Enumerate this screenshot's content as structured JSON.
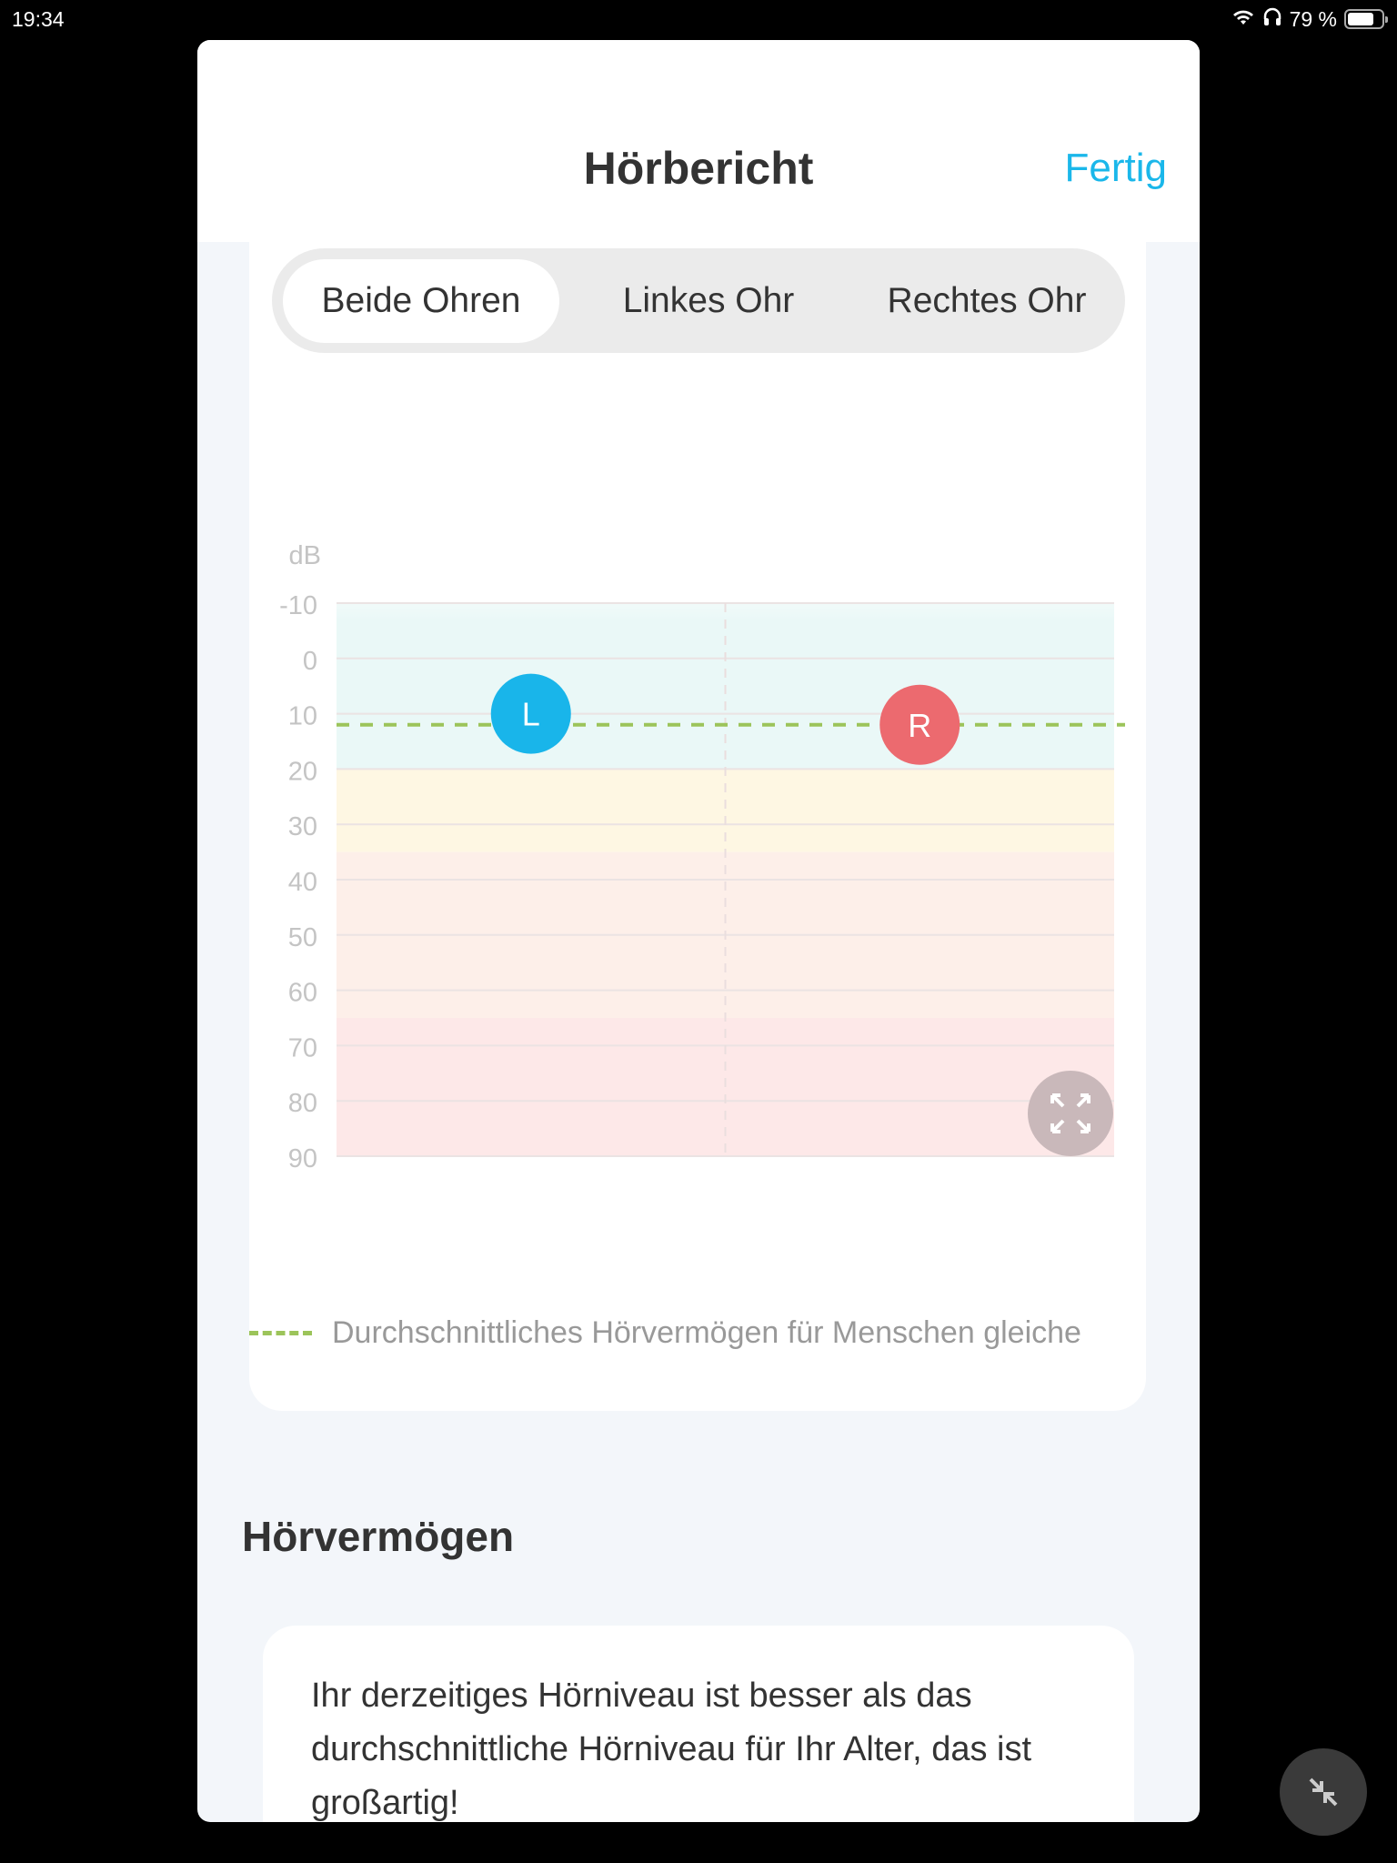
{
  "status_bar": {
    "time": "19:34",
    "battery": "79 %",
    "icons": [
      "wifi-icon",
      "headphones-icon",
      "battery-icon"
    ]
  },
  "header": {
    "title": "Hörbericht",
    "done": "Fertig"
  },
  "tabs": [
    {
      "label": "Beide Ohren",
      "selected": true
    },
    {
      "label": "Linkes Ohr",
      "selected": false
    },
    {
      "label": "Rechtes Ohr",
      "selected": false
    }
  ],
  "chart_data": {
    "type": "scatter",
    "ylabel": "dB",
    "yticks": [
      "-10",
      "0",
      "10",
      "20",
      "30",
      "40",
      "50",
      "60",
      "70",
      "80",
      "90"
    ],
    "ylim": [
      -10,
      90
    ],
    "y_inverted": true,
    "points": [
      {
        "label": "L",
        "value": 10,
        "color": "#19b5ea"
      },
      {
        "label": "R",
        "value": 12,
        "color": "#ec6a6f"
      }
    ],
    "reference_line": {
      "value": 12,
      "color": "#9cc45a",
      "style": "dashed"
    },
    "bands": [
      {
        "from": -10,
        "to": 20,
        "color": "#eaf8f7"
      },
      {
        "from": 20,
        "to": 35,
        "color": "#fef7e3"
      },
      {
        "from": 35,
        "to": 65,
        "color": "#fdefe9"
      },
      {
        "from": 65,
        "to": 90,
        "color": "#fde8e8"
      }
    ],
    "grid": true,
    "legend": "bottom",
    "legend_text": "Durchschnittliches Hörvermögen für Menschen gleiche"
  },
  "section": {
    "title": "Hörvermögen",
    "text": "Ihr derzeitiges Hörniveau ist besser als das durchschnittliche Hörniveau für Ihr Alter, das ist großartig!"
  },
  "colors": {
    "accent": "#1ab7ea",
    "left": "#19b5ea",
    "right": "#ec6a6f"
  }
}
